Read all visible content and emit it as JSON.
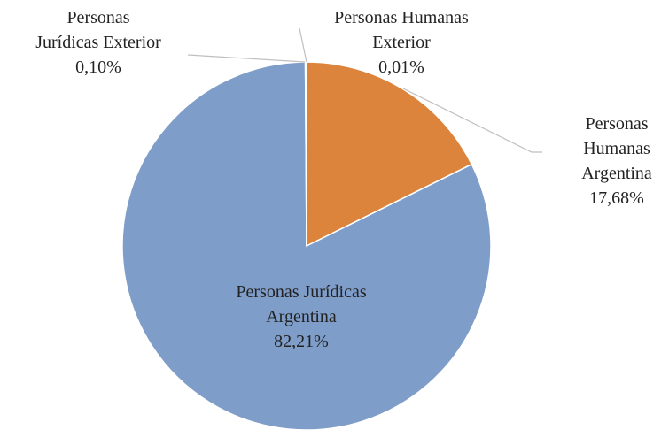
{
  "chart_data": {
    "type": "pie",
    "categories": [
      "Personas Humanas Argentina",
      "Personas Jurídicas Argentina",
      "Personas Jurídicas Exterior",
      "Personas Humanas Exterior"
    ],
    "values": [
      17.68,
      82.21,
      0.1,
      0.01
    ],
    "value_labels": [
      "17,68%",
      "82,21%",
      "0,10%",
      "0,01%"
    ],
    "colors": [
      "#dd843c",
      "#7f9dc9",
      "#a5a5a5",
      "#ffc000"
    ]
  }
}
